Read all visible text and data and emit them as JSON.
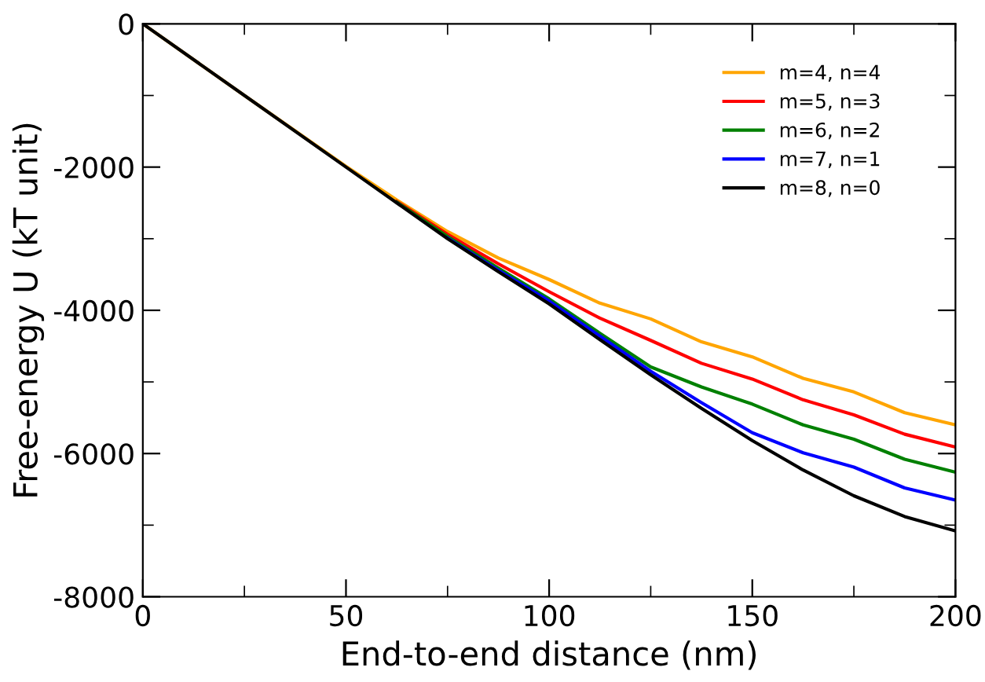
{
  "chart_data": {
    "type": "line",
    "xlabel": "End-to-end distance (nm)",
    "ylabel": "Free-energy U (kT unit)",
    "x": [
      0,
      25,
      50,
      62.5,
      75,
      87.5,
      100,
      112.5,
      125,
      137.5,
      150,
      162.5,
      175,
      187.5,
      200
    ],
    "series": [
      {
        "name": "m=4, n=4",
        "color": "#ffa500",
        "values": [
          0,
          -1000,
          -1990,
          -2460,
          -2900,
          -3270,
          -3570,
          -3900,
          -4120,
          -4440,
          -4650,
          -4950,
          -5140,
          -5430,
          -5600
        ]
      },
      {
        "name": "m=5, n=3",
        "color": "#ff0000",
        "x": [
          62.5,
          75,
          87.5,
          100,
          112.5,
          125,
          137.5,
          150,
          162.5,
          175,
          187.5,
          200
        ],
        "values": [
          -2480,
          -2940,
          -3350,
          -3740,
          -4110,
          -4420,
          -4740,
          -4960,
          -5250,
          -5460,
          -5730,
          -5910
        ]
      },
      {
        "name": "m=6, n=2",
        "color": "#008000",
        "x": [
          62.5,
          75,
          87.5,
          100,
          112.5,
          125,
          137.5,
          150,
          162.5,
          175,
          187.5,
          200
        ],
        "values": [
          -2490,
          -2970,
          -3410,
          -3840,
          -4320,
          -4790,
          -5070,
          -5310,
          -5600,
          -5800,
          -6080,
          -6260
        ]
      },
      {
        "name": "m=7, n=1",
        "color": "#0000ff",
        "x": [
          75,
          87.5,
          100,
          112.5,
          125,
          137.5,
          150,
          162.5,
          175,
          187.5,
          200
        ],
        "values": [
          -2990,
          -3440,
          -3870,
          -4360,
          -4850,
          -5290,
          -5710,
          -5990,
          -6190,
          -6480,
          -6650
        ]
      },
      {
        "name": "m=8, n=0",
        "color": "#000000",
        "values": [
          0,
          -1000,
          -2000,
          -2500,
          -3000,
          -3460,
          -3910,
          -4410,
          -4900,
          -5370,
          -5820,
          -6230,
          -6590,
          -6880,
          -7080
        ]
      }
    ],
    "xlim": [
      0,
      200
    ],
    "ylim": [
      -8000,
      0
    ],
    "xticks": [
      0,
      50,
      100,
      150,
      200
    ],
    "yticks": [
      -8000,
      -6000,
      -4000,
      -2000,
      0
    ],
    "grid": false,
    "legend": "top right",
    "marker": "none",
    "line_style": "solid"
  }
}
